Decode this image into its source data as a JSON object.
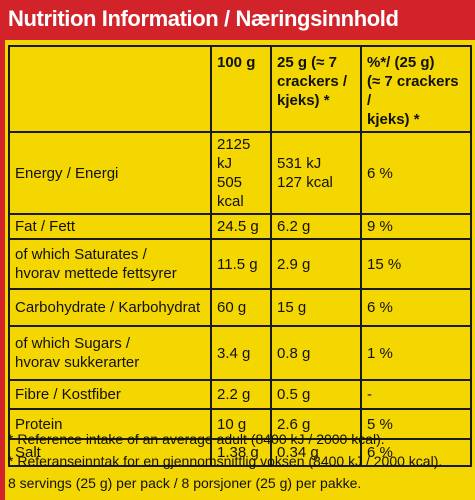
{
  "header": {
    "title": "Nutrition Information / Næringsinnhold"
  },
  "table": {
    "columns": [
      [
        "100 g"
      ],
      [
        "25 g (≈ 7",
        "crackers /",
        "kjeks) *"
      ],
      [
        "%*/ (25 g)",
        "(≈ 7 crackers /",
        "kjeks) *"
      ]
    ],
    "rows": [
      {
        "label": [
          "Energy / Energi"
        ],
        "values": [
          [
            "2125 kJ",
            "505 kcal"
          ],
          [
            "531 kJ",
            "127 kcal"
          ],
          [
            "6 %"
          ]
        ]
      },
      {
        "label": [
          "Fat / Fett"
        ],
        "values": [
          [
            "24.5 g"
          ],
          [
            "6.2 g"
          ],
          [
            "9 %"
          ]
        ]
      },
      {
        "label": [
          "of which Saturates /",
          "hvorav mettede fettsyrer"
        ],
        "values": [
          [
            "11.5 g"
          ],
          [
            "2.9 g"
          ],
          [
            "15 %"
          ]
        ]
      },
      {
        "label": [
          "Carbohydrate / Karbohydrat"
        ],
        "values": [
          [
            "60 g"
          ],
          [
            "15 g"
          ],
          [
            "6 %"
          ]
        ]
      },
      {
        "label": [
          "of which Sugars /",
          "hvorav sukkerarter"
        ],
        "values": [
          [
            "3.4 g"
          ],
          [
            "0.8 g"
          ],
          [
            "1 %"
          ]
        ]
      },
      {
        "label": [
          "Fibre / Kostfiber"
        ],
        "values": [
          [
            "2.2 g"
          ],
          [
            "0.5 g"
          ],
          [
            "-"
          ]
        ]
      },
      {
        "label": [
          "Protein"
        ],
        "values": [
          [
            "10 g"
          ],
          [
            "2.6 g"
          ],
          [
            "5 %"
          ]
        ]
      },
      {
        "label": [
          "Salt"
        ],
        "values": [
          [
            "1.38 g"
          ],
          [
            "0.34 g"
          ],
          [
            "6 %"
          ]
        ]
      }
    ]
  },
  "footnotes": [
    "* Reference intake of an average adult (8400 kJ / 2000 kcal).",
    "* Referanseinntak for en gjennomsnittlig voksen (8400 kJ / 2000 kcal).",
    "8 servings (25 g) per pack / 8 porsjoner (25 g) per pakke."
  ]
}
